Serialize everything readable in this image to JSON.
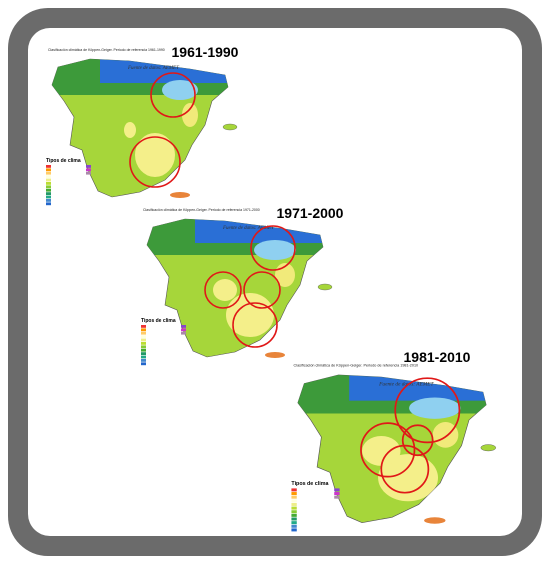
{
  "maps": [
    {
      "period": "1961-1990",
      "title": "Clasificación climática de Köppen-Geiger. Periodo de referencia 1961-1990",
      "source": "Fuente de datos: AEMET",
      "legend_title": "Tipos de clima"
    },
    {
      "period": "1971-2000",
      "title": "Clasificación climática de Köppen-Geiger. Periodo de referencia 1971-2000",
      "source": "Fuente de datos: AEMET",
      "legend_title": "Tipos de clima"
    },
    {
      "period": "1981-2010",
      "title": "Clasificación climática de Köppen-Geiger. Periodo de referencia 1981-2010",
      "source": "Fuente de datos: AEMET",
      "legend_title": "Tipos de clima"
    }
  ]
}
